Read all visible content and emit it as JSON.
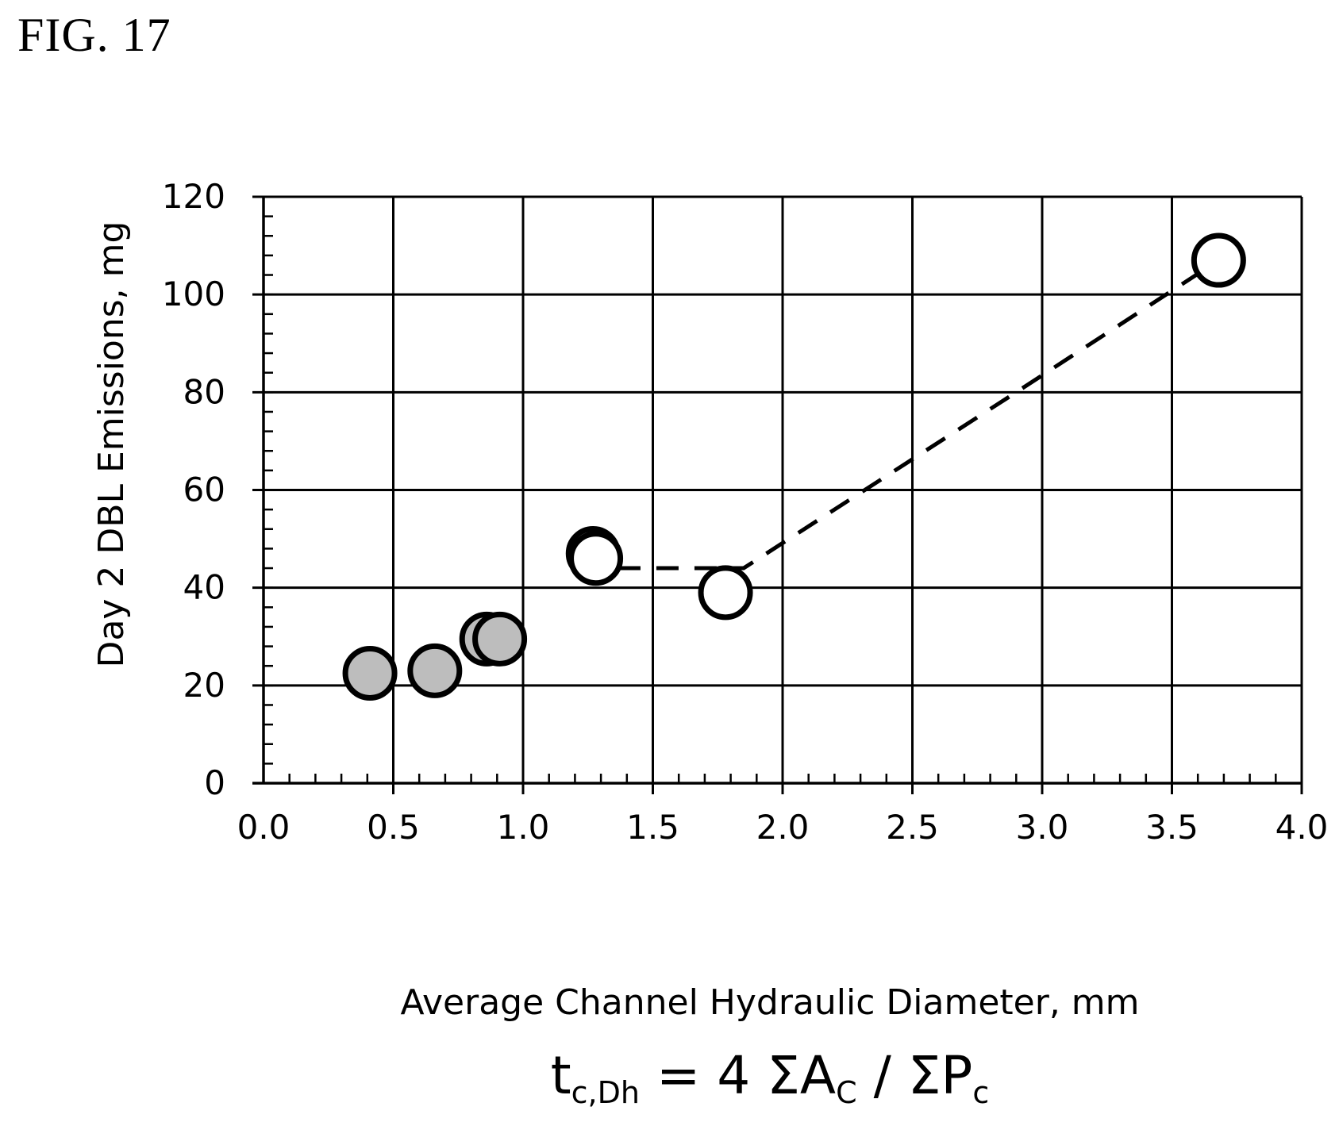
{
  "figure_label": "FIG. 17",
  "chart_data": {
    "type": "scatter",
    "title": "",
    "xlabel": "Average Channel Hydraulic Diameter, mm",
    "ylabel": "Day 2 DBL Emissions, mg",
    "formula": {
      "lhs_main": "t",
      "lhs_sub": "c,Dh",
      "eq": " = 4 ΣA",
      "a_sub": "C",
      "mid": " / ΣP",
      "p_sub": "c"
    },
    "xlim": [
      0.0,
      4.0
    ],
    "ylim": [
      0,
      120
    ],
    "x_ticks": [
      "0.0",
      "0.5",
      "1.0",
      "1.5",
      "2.0",
      "2.5",
      "3.0",
      "3.5",
      "4.0"
    ],
    "y_ticks": [
      "0",
      "20",
      "40",
      "60",
      "80",
      "100",
      "120"
    ],
    "grid": true,
    "series": [
      {
        "marker": "filled-gray",
        "color": "#bdbdbd",
        "points": [
          {
            "x": 0.41,
            "y": 22.5
          },
          {
            "x": 0.66,
            "y": 23.0
          },
          {
            "x": 0.86,
            "y": 29.5
          },
          {
            "x": 0.91,
            "y": 29.5
          }
        ]
      },
      {
        "marker": "open",
        "color": "#ffffff",
        "points": [
          {
            "x": 1.27,
            "y": 47.0
          },
          {
            "x": 1.28,
            "y": 46.0
          },
          {
            "x": 1.78,
            "y": 39.0
          },
          {
            "x": 3.68,
            "y": 107.0
          }
        ]
      }
    ],
    "trendline": {
      "style": "dashed",
      "points": [
        {
          "x": 1.22,
          "y": 44.0
        },
        {
          "x": 1.85,
          "y": 44.0
        },
        {
          "x": 2.9,
          "y": 80.0
        },
        {
          "x": 3.68,
          "y": 107.0
        }
      ]
    }
  }
}
